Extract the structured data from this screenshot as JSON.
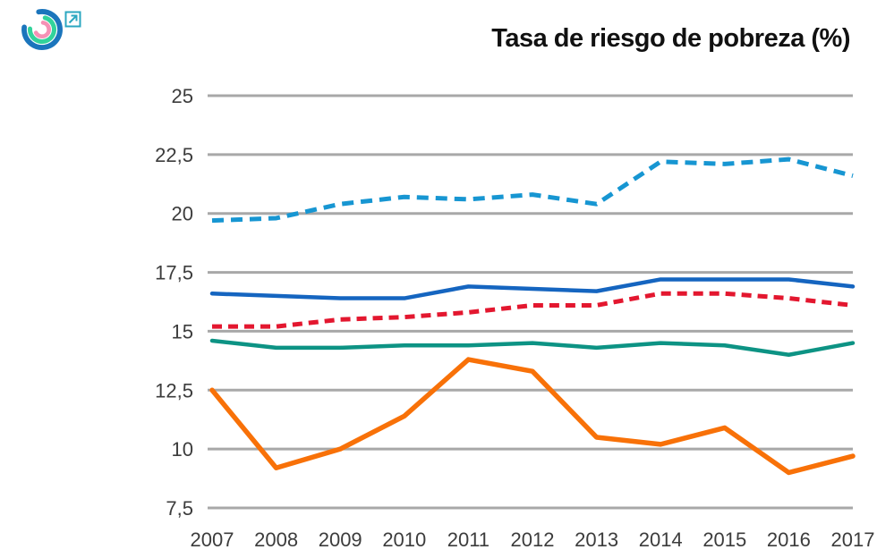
{
  "header": {
    "title": "Tasa de riesgo de pobreza (%)"
  },
  "colors": {
    "grid": "#a8a8a8",
    "tick_text": "#3c3c3c",
    "title_text": "#111111",
    "logo_blue": "#1b75bc",
    "logo_green": "#32d39b",
    "logo_pink": "#f591b5",
    "link_icon": "#2ba7c0"
  },
  "chart_data": {
    "type": "line",
    "title": "Tasa de riesgo de pobreza (%)",
    "x_labels": [
      "2007",
      "2008",
      "2009",
      "2010",
      "2011",
      "2012",
      "2013",
      "2014",
      "2015",
      "2016",
      "2017"
    ],
    "y_ticks": [
      7.5,
      10,
      12.5,
      15,
      17.5,
      20,
      22.5,
      25
    ],
    "y_tick_labels": [
      "7,5",
      "10",
      "12,5",
      "15",
      "17,5",
      "20",
      "22,5",
      "25"
    ],
    "ylim": [
      7.5,
      25
    ],
    "grid": "horizontal-only",
    "legend": "none",
    "series": [
      {
        "name": "line-series-light-blue-dashed",
        "color": "#1796d2",
        "dash": true,
        "dash_pattern": "13 8",
        "width": 5,
        "values": [
          19.7,
          19.8,
          20.4,
          20.7,
          20.6,
          20.8,
          20.4,
          22.2,
          22.1,
          22.3,
          21.6
        ]
      },
      {
        "name": "line-series-dark-blue-solid",
        "color": "#1565c0",
        "dash": false,
        "dash_pattern": "",
        "width": 4.5,
        "values": [
          16.6,
          16.5,
          16.4,
          16.4,
          16.9,
          16.8,
          16.7,
          17.2,
          17.2,
          17.2,
          16.9
        ]
      },
      {
        "name": "line-series-red-dashed",
        "color": "#e3172f",
        "dash": true,
        "dash_pattern": "11 7",
        "width": 5,
        "values": [
          15.2,
          15.2,
          15.5,
          15.6,
          15.8,
          16.1,
          16.1,
          16.6,
          16.6,
          16.4,
          16.1
        ]
      },
      {
        "name": "line-series-teal-solid",
        "color": "#0d9384",
        "dash": false,
        "dash_pattern": "",
        "width": 4.5,
        "values": [
          14.6,
          14.3,
          14.3,
          14.4,
          14.4,
          14.5,
          14.3,
          14.5,
          14.4,
          14.0,
          14.5
        ]
      },
      {
        "name": "line-series-orange-solid",
        "color": "#f87108",
        "dash": false,
        "dash_pattern": "",
        "width": 5.5,
        "values": [
          12.5,
          9.2,
          10.0,
          11.4,
          13.8,
          13.3,
          10.5,
          10.2,
          10.9,
          9.0,
          9.7
        ]
      }
    ]
  }
}
